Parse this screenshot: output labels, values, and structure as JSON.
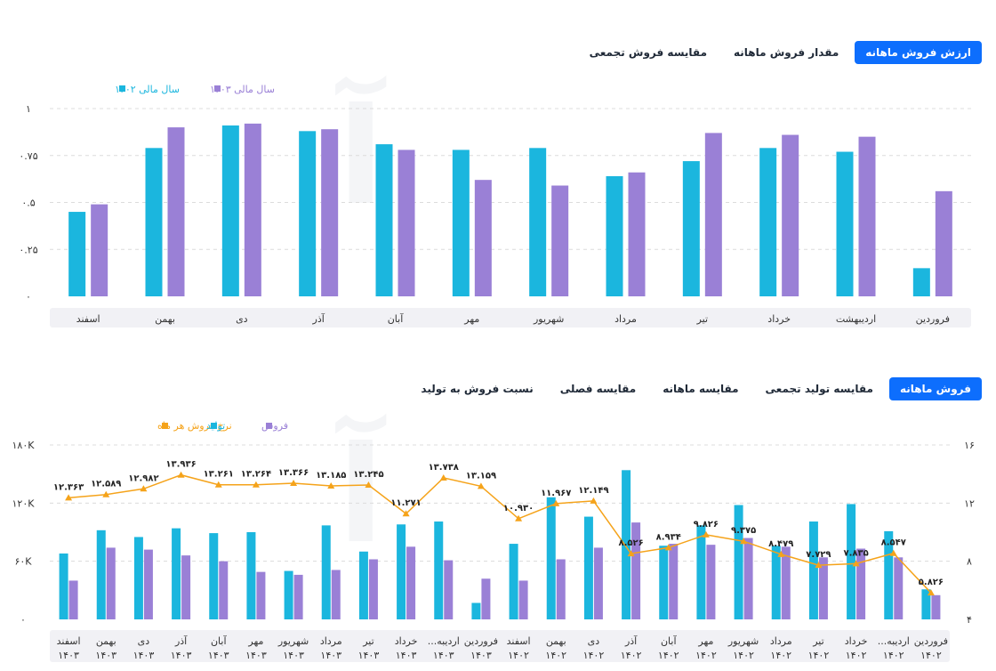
{
  "colors": {
    "series_1402": "#1bb6de",
    "series_1403": "#9a80d6",
    "production": "#1bb6de",
    "sales": "#9a80d6",
    "rate": "#f5a31a",
    "tab_active_bg": "#0d6efd",
    "axis_band": "#f1f1f5"
  },
  "panel1": {
    "tabs": [
      {
        "label": "ارزش فروش ماهانه",
        "active": true
      },
      {
        "label": "مقدار فروش ماهانه",
        "active": false
      },
      {
        "label": "مقایسه فروش تجمعی",
        "active": false
      }
    ]
  },
  "panel2": {
    "tabs": [
      {
        "label": "فروش ماهانه",
        "active": true
      },
      {
        "label": "مقایسه تولید تجمعی",
        "active": false
      },
      {
        "label": "مقایسه ماهانه",
        "active": false
      },
      {
        "label": "مقایسه فصلی",
        "active": false
      },
      {
        "label": "نسبت فروش به تولید",
        "active": false
      }
    ]
  },
  "chart_data": [
    {
      "type": "bar",
      "title": "",
      "legend_position": "top-left",
      "grid": true,
      "categories": [
        "فروردین",
        "اردیبهشت",
        "خرداد",
        "تیر",
        "مرداد",
        "شهریور",
        "مهر",
        "آبان",
        "آذر",
        "دی",
        "بهمن",
        "اسفند"
      ],
      "yticks": [
        "۰",
        "۰.۲۵",
        "۰.۵",
        "۰.۷۵",
        "۱"
      ],
      "ylim": [
        0,
        1
      ],
      "series": [
        {
          "name": "سال مالی ۱۴۰۲",
          "values": [
            0.15,
            0.77,
            0.79,
            0.72,
            0.64,
            0.79,
            0.78,
            0.81,
            0.88,
            0.91,
            0.79,
            0.45
          ]
        },
        {
          "name": "سال مالی ۱۴۰۳",
          "values": [
            0.56,
            0.85,
            0.86,
            0.87,
            0.66,
            0.59,
            0.62,
            0.78,
            0.89,
            0.92,
            0.9,
            0.49
          ]
        }
      ]
    },
    {
      "type": "bar",
      "title": "",
      "legend_position": "top-left",
      "grid": true,
      "categories": [
        "فروردین ۱۴۰۲",
        "اردیبه... ۱۴۰۲",
        "خرداد ۱۴۰۲",
        "تیر ۱۴۰۲",
        "مرداد ۱۴۰۲",
        "شهریور ۱۴۰۲",
        "مهر ۱۴۰۲",
        "آبان ۱۴۰۲",
        "آذر ۱۴۰۲",
        "دی ۱۴۰۲",
        "بهمن ۱۴۰۲",
        "اسفند ۱۴۰۲",
        "فروردین ۱۴۰۳",
        "اردیبه... ۱۴۰۳",
        "خرداد ۱۴۰۳",
        "تیر ۱۴۰۳",
        "مرداد ۱۴۰۳",
        "شهریور ۱۴۰۳",
        "مهر ۱۴۰۳",
        "آبان ۱۴۰۳",
        "آذر ۱۴۰۳",
        "دی ۱۴۰۳",
        "بهمن ۱۴۰۳",
        "اسفند ۱۴۰۳"
      ],
      "y_left_ticks": [
        "۰",
        "۶۰K",
        "۱۲۰K",
        "۱۸۰K"
      ],
      "y_left_lim": [
        0,
        180000
      ],
      "y_right_ticks": [
        "۴",
        "۸",
        "۱۲",
        "۱۶"
      ],
      "y_right_lim": [
        4,
        16
      ],
      "series": [
        {
          "name": "فروش",
          "kind": "bar",
          "values": [
            25000,
            64000,
            73000,
            64000,
            75000,
            84000,
            77000,
            78000,
            100000,
            74000,
            62000,
            40000,
            42000,
            61000,
            75000,
            62000,
            51000,
            46000,
            49000,
            60000,
            66000,
            72000,
            74000,
            40000
          ]
        },
        {
          "name": "تولید",
          "kind": "bar",
          "values": [
            31000,
            91000,
            119000,
            101000,
            76000,
            118000,
            97000,
            76000,
            154000,
            106000,
            126000,
            78000,
            17000,
            101000,
            98000,
            70000,
            97000,
            50000,
            90000,
            89000,
            94000,
            85000,
            92000,
            68000
          ]
        },
        {
          "name": "نرخ فروش هر ماه",
          "kind": "line",
          "axis": "right",
          "values": [
            5.826,
            8.547,
            7.835,
            7.729,
            8.479,
            9.375,
            9.826,
            8.934,
            8.526,
            12.149,
            11.967,
            10.93,
            13.159,
            13.738,
            11.271,
            13.245,
            13.185,
            13.366,
            13.264,
            13.261,
            13.936,
            12.982,
            12.589,
            12.363
          ]
        }
      ],
      "value_labels": [
        "۵.۸۲۶",
        "۸.۵۴۷",
        "۷.۸۳۵",
        "۷.۷۲۹",
        "۸.۴۷۹",
        "۹.۳۷۵",
        "۹.۸۲۶",
        "۸.۹۳۴",
        "۸.۵۲۶",
        "۱۲.۱۴۹",
        "۱۱.۹۶۷",
        "۱۰.۹۳۰",
        "۱۳.۱۵۹",
        "۱۳.۷۳۸",
        "۱۱.۲۷۱",
        "۱۳.۲۴۵",
        "۱۳.۱۸۵",
        "۱۳.۳۶۶",
        "۱۳.۲۶۴",
        "۱۳.۲۶۱",
        "۱۳.۹۳۶",
        "۱۲.۹۸۲",
        "۱۲.۵۸۹",
        "۱۲.۳۶۳"
      ]
    }
  ]
}
